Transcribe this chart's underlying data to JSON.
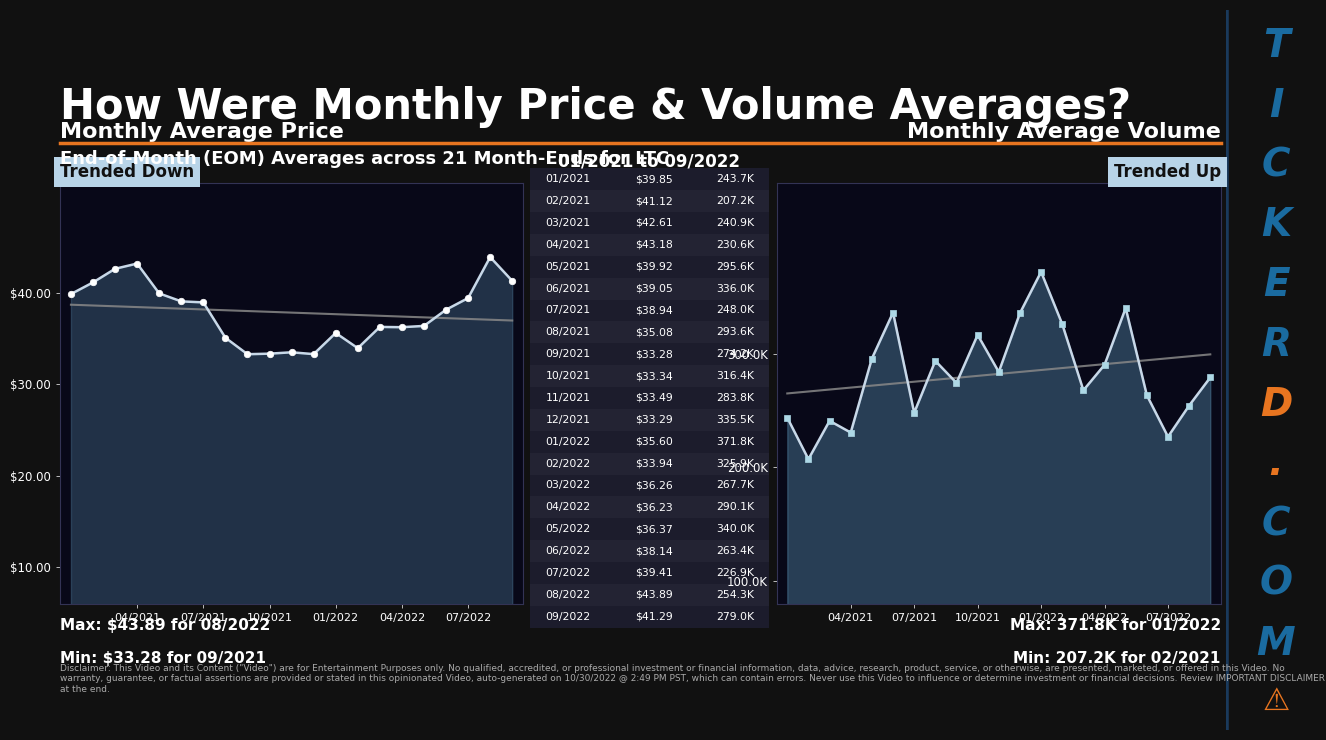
{
  "title": "How Were Monthly Price & Volume Averages?",
  "subtitle": "End-of-Month (EOM) Averages across 21 Month-Ends for LTC",
  "table_header": "01/2021 to 09/2022",
  "dates": [
    "01/2021",
    "02/2021",
    "03/2021",
    "04/2021",
    "05/2021",
    "06/2021",
    "07/2021",
    "08/2021",
    "09/2021",
    "10/2021",
    "11/2021",
    "12/2021",
    "01/2022",
    "02/2022",
    "03/2022",
    "04/2022",
    "05/2022",
    "06/2022",
    "07/2022",
    "08/2022",
    "09/2022"
  ],
  "prices": [
    39.85,
    41.12,
    42.61,
    43.18,
    39.92,
    39.05,
    38.94,
    35.08,
    33.28,
    33.34,
    33.49,
    33.29,
    35.6,
    33.94,
    36.26,
    36.23,
    36.37,
    38.14,
    39.41,
    43.89,
    41.29
  ],
  "volumes": [
    243700,
    207200,
    240900,
    230600,
    295600,
    336000,
    248000,
    293600,
    274200,
    316400,
    283800,
    335500,
    371800,
    325900,
    267700,
    290100,
    340000,
    263400,
    226900,
    254300,
    279000
  ],
  "price_label": "Monthly Average Price",
  "volume_label": "Monthly Average Volume",
  "price_trend_label": "Trended Down",
  "volume_trend_label": "Trended Up",
  "price_max_label": "Max: $43.89 for 08/2022",
  "price_min_label": "Min: $33.28 for 09/2021",
  "volume_max_label": "Max: 371.8K for 01/2022",
  "volume_min_label": "Min: 207.2K for 02/2021",
  "bg_color": "#111111",
  "text_color": "#ffffff",
  "line_color": "#c8d8e8",
  "trend_line_color": "#888888",
  "orange_color": "#e87520",
  "blue_side_color": "#1a3a5c",
  "light_blue_box": "#b8d4e8",
  "disclaimer": "Disclaimer: This Video and its Content (\"Video\") are for Entertainment Purposes only. No qualified, accredited, or professional investment or financial information, data, advice, research, product, service, or otherwise, are presented, marketed, or offered in this Video. No warranty, guarantee, or factual assertions are provided or stated in this opinionated Video, auto-generated on 10/30/2022 @ 2:49 PM PST, which can contain errors. Never use this Video to influence or determine investment or financial decisions. Review IMPORTANT DISCLAIMER at the end.",
  "x_tick_labels": [
    "04/2021",
    "07/2021",
    "10/2021",
    "01/2022",
    "04/2022",
    "07/2022"
  ],
  "price_yticks": [
    10.0,
    20.0,
    30.0,
    40.0
  ],
  "volume_yticks": [
    100000,
    200000,
    300000
  ],
  "volume_ytick_labels": [
    "100.0K",
    "200.0K",
    "300.0K"
  ],
  "ticker_chars": [
    "T",
    "I",
    "C",
    "K",
    "E",
    "R",
    "D",
    ".",
    "C",
    "O",
    "M"
  ],
  "ticker_char_colors": [
    "#1a6ba0",
    "#1a6ba0",
    "#1a6ba0",
    "#1a6ba0",
    "#1a6ba0",
    "#1a6ba0",
    "#e87520",
    "#e87520",
    "#1a6ba0",
    "#1a6ba0",
    "#1a6ba0"
  ]
}
